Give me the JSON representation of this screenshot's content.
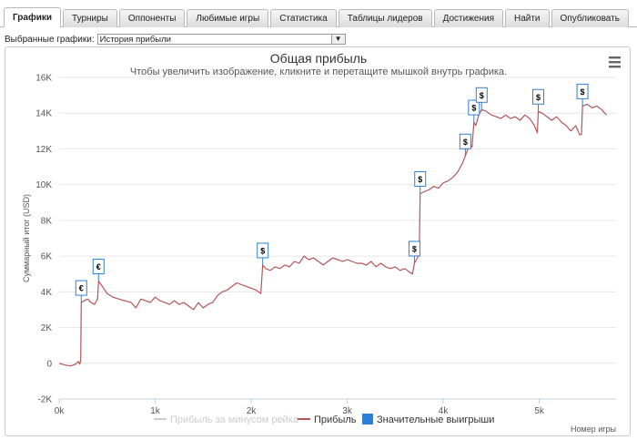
{
  "tabs": [
    {
      "label": "Графики",
      "active": true
    },
    {
      "label": "Турниры",
      "active": false
    },
    {
      "label": "Оппоненты",
      "active": false
    },
    {
      "label": "Любимые игры",
      "active": false
    },
    {
      "label": "Статистика",
      "active": false
    },
    {
      "label": "Таблицы лидеров",
      "active": false
    },
    {
      "label": "Достижения",
      "active": false
    },
    {
      "label": "Найти",
      "active": false
    },
    {
      "label": "Опубликовать",
      "active": false
    }
  ],
  "selector": {
    "label": "Выбранные графики:",
    "value": "История прибыли"
  },
  "chart_data": {
    "type": "line",
    "title": "Общая прибыль",
    "subtitle": "Чтобы увеличить изображение, кликните и перетащите мышкой внутрь графика.",
    "xlabel": "Номер игры",
    "ylabel": "Суммарный итог (USD)",
    "xlim": [
      0,
      5800
    ],
    "ylim": [
      -2000,
      16000
    ],
    "x_ticks": [
      "0k",
      "1k",
      "2k",
      "3k",
      "4k",
      "5k"
    ],
    "y_ticks": [
      "-2K",
      "0",
      "2K",
      "4K",
      "6K",
      "8K",
      "10K",
      "12K",
      "14K",
      "16K"
    ],
    "series": [
      {
        "name": "Прибыль за минусом рейка",
        "color": "#cccccc",
        "points": []
      },
      {
        "name": "Прибыль",
        "color": "#b5555a",
        "points": [
          [
            0,
            0
          ],
          [
            60,
            -100
          ],
          [
            120,
            -150
          ],
          [
            170,
            -50
          ],
          [
            200,
            100
          ],
          [
            215,
            -50
          ],
          [
            225,
            200
          ],
          [
            230,
            3400
          ],
          [
            260,
            3500
          ],
          [
            300,
            3600
          ],
          [
            330,
            3400
          ],
          [
            370,
            3300
          ],
          [
            400,
            3600
          ],
          [
            410,
            4600
          ],
          [
            450,
            4300
          ],
          [
            500,
            3900
          ],
          [
            560,
            3700
          ],
          [
            620,
            3600
          ],
          [
            680,
            3500
          ],
          [
            750,
            3400
          ],
          [
            800,
            3100
          ],
          [
            850,
            3600
          ],
          [
            900,
            3500
          ],
          [
            950,
            3400
          ],
          [
            1000,
            3700
          ],
          [
            1050,
            3500
          ],
          [
            1100,
            3400
          ],
          [
            1150,
            3300
          ],
          [
            1200,
            3500
          ],
          [
            1250,
            3300
          ],
          [
            1300,
            3400
          ],
          [
            1350,
            3200
          ],
          [
            1400,
            3000
          ],
          [
            1450,
            3400
          ],
          [
            1500,
            3100
          ],
          [
            1550,
            3300
          ],
          [
            1600,
            3400
          ],
          [
            1650,
            3800
          ],
          [
            1700,
            4000
          ],
          [
            1750,
            4100
          ],
          [
            1800,
            4300
          ],
          [
            1850,
            4500
          ],
          [
            1900,
            4400
          ],
          [
            1950,
            4300
          ],
          [
            2000,
            4200
          ],
          [
            2050,
            4100
          ],
          [
            2100,
            3900
          ],
          [
            2120,
            5500
          ],
          [
            2150,
            5300
          ],
          [
            2200,
            5200
          ],
          [
            2250,
            5400
          ],
          [
            2300,
            5300
          ],
          [
            2350,
            5500
          ],
          [
            2400,
            5400
          ],
          [
            2450,
            5700
          ],
          [
            2500,
            5600
          ],
          [
            2550,
            6000
          ],
          [
            2600,
            5800
          ],
          [
            2650,
            5900
          ],
          [
            2700,
            5700
          ],
          [
            2750,
            5500
          ],
          [
            2800,
            5700
          ],
          [
            2850,
            5900
          ],
          [
            2900,
            5800
          ],
          [
            2950,
            5700
          ],
          [
            3000,
            5800
          ],
          [
            3050,
            5700
          ],
          [
            3100,
            5600
          ],
          [
            3150,
            5600
          ],
          [
            3200,
            5500
          ],
          [
            3250,
            5700
          ],
          [
            3300,
            5400
          ],
          [
            3350,
            5600
          ],
          [
            3400,
            5400
          ],
          [
            3450,
            5300
          ],
          [
            3500,
            5400
          ],
          [
            3550,
            5200
          ],
          [
            3600,
            5300
          ],
          [
            3650,
            5100
          ],
          [
            3680,
            5000
          ],
          [
            3700,
            5600
          ],
          [
            3730,
            5900
          ],
          [
            3750,
            6100
          ],
          [
            3760,
            9500
          ],
          [
            3800,
            9600
          ],
          [
            3850,
            9700
          ],
          [
            3900,
            9900
          ],
          [
            3950,
            9800
          ],
          [
            4000,
            10100
          ],
          [
            4050,
            10200
          ],
          [
            4100,
            10400
          ],
          [
            4150,
            10700
          ],
          [
            4200,
            11200
          ],
          [
            4230,
            11600
          ],
          [
            4250,
            11900
          ],
          [
            4280,
            12200
          ],
          [
            4300,
            12100
          ],
          [
            4320,
            13500
          ],
          [
            4340,
            13300
          ],
          [
            4370,
            13900
          ],
          [
            4400,
            14200
          ],
          [
            4450,
            14100
          ],
          [
            4500,
            13900
          ],
          [
            4550,
            13800
          ],
          [
            4600,
            13700
          ],
          [
            4650,
            13900
          ],
          [
            4700,
            13700
          ],
          [
            4750,
            13800
          ],
          [
            4800,
            13600
          ],
          [
            4850,
            13900
          ],
          [
            4900,
            13700
          ],
          [
            4950,
            13300
          ],
          [
            4980,
            12900
          ],
          [
            4990,
            14100
          ],
          [
            5030,
            14000
          ],
          [
            5080,
            13800
          ],
          [
            5130,
            13600
          ],
          [
            5180,
            13800
          ],
          [
            5230,
            13500
          ],
          [
            5280,
            13300
          ],
          [
            5330,
            13000
          ],
          [
            5380,
            13300
          ],
          [
            5420,
            12800
          ],
          [
            5440,
            12800
          ],
          [
            5450,
            14400
          ],
          [
            5500,
            14500
          ],
          [
            5550,
            14300
          ],
          [
            5600,
            14400
          ],
          [
            5650,
            14200
          ],
          [
            5700,
            13900
          ]
        ]
      }
    ],
    "big_wins": [
      {
        "x": 230,
        "y": 3400,
        "symbol": "€"
      },
      {
        "x": 410,
        "y": 4600,
        "symbol": "€"
      },
      {
        "x": 2120,
        "y": 5500,
        "symbol": "$"
      },
      {
        "x": 3700,
        "y": 5600,
        "symbol": "$"
      },
      {
        "x": 3760,
        "y": 9500,
        "symbol": "$"
      },
      {
        "x": 4230,
        "y": 11600,
        "symbol": "$"
      },
      {
        "x": 4320,
        "y": 13500,
        "symbol": "$"
      },
      {
        "x": 4400,
        "y": 14200,
        "symbol": "$"
      },
      {
        "x": 4990,
        "y": 14100,
        "symbol": "$"
      },
      {
        "x": 5450,
        "y": 14400,
        "symbol": "$"
      }
    ],
    "big_wins_name": "Значительные выигрыши",
    "big_wins_color": "#2f7ed8"
  }
}
